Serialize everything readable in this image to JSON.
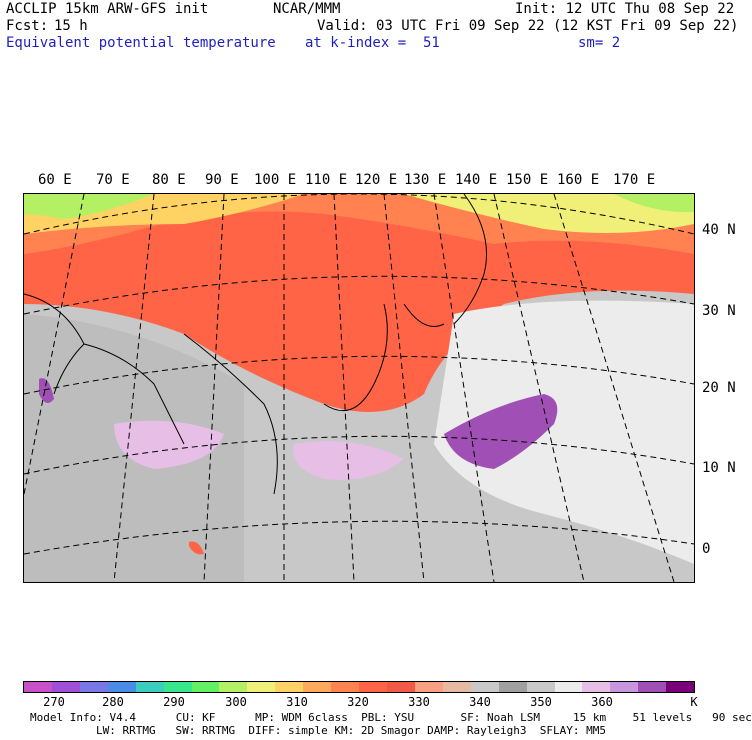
{
  "header": {
    "model": "ACCLIP 15km ARW-GFS init",
    "org": "NCAR/MMM",
    "init": "Init: 12 UTC Thu 08 Sep 22",
    "fcst_label": "Fcst:",
    "fcst_value": "15 h",
    "valid": "Valid: 03 UTC Fri 09 Sep 22 (12 KST Fri 09 Sep 22)",
    "field": "Equivalent potential temperature",
    "level": "at k-index =  51",
    "smooth": "sm= 2"
  },
  "map": {
    "lon_labels": [
      "60 E",
      "70 E",
      "80 E",
      "90 E",
      "100 E",
      "110 E",
      "120 E",
      "130 E",
      "140 E",
      "150 E",
      "160 E",
      "170 E"
    ],
    "lat_labels": [
      "40 N",
      "30 N",
      "20 N",
      "10 N",
      "0"
    ]
  },
  "colorbar": {
    "colors": [
      "#c850c8",
      "#a050d8",
      "#7878e6",
      "#4a8ce6",
      "#3ccdbe",
      "#38e68c",
      "#64f064",
      "#b4f064",
      "#f0f078",
      "#ffd264",
      "#ffaa5a",
      "#ff8250",
      "#ff6446",
      "#f05a46",
      "#f8a082",
      "#e6b9a0",
      "#c8c8c8",
      "#a0a0a0",
      "#c8c8c8",
      "#ececec",
      "#e6bee6",
      "#c896dc",
      "#a050b4",
      "#780078"
    ],
    "ticks": [
      "270",
      "280",
      "290",
      "300",
      "310",
      "320",
      "330",
      "340",
      "350",
      "360",
      "K"
    ]
  },
  "footer": {
    "line1": "Model Info: V4.4      CU: KF      MP: WDM 6class  PBL: YSU       SF: Noah LSM     15 km    51 levels   90 sec",
    "line2": "LW: RRTMG   SW: RRTMG  DIFF: simple KM: 2D Smagor DAMP: Rayleigh3  SFLAY: MM5"
  }
}
